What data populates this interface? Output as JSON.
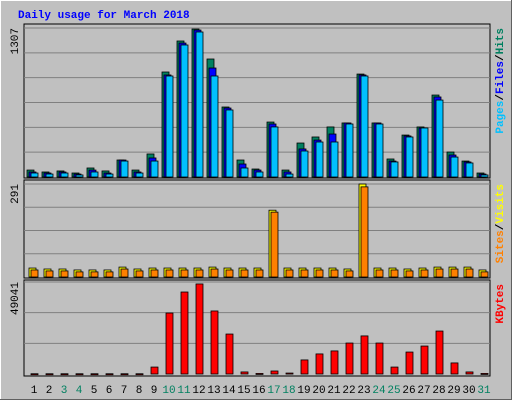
{
  "chart_data": [
    {
      "type": "bar",
      "title": "Daily usage for March 2018",
      "ylim": [
        0,
        1307
      ],
      "yticks": [
        1307
      ],
      "grid_divisions": 6,
      "legend_separator": "/",
      "series": [
        {
          "name": "Hits",
          "color": "#008060",
          "values": [
            61,
            44,
            53,
            35,
            79,
            53,
            149,
            61,
            202,
            921,
            1193,
            1298,
            1035,
            614,
            149,
            70,
            482,
            61,
            298,
            351,
            439,
            474,
            903,
            474,
            158,
            368,
            439,
            719,
            219,
            140,
            35
          ]
        },
        {
          "name": "Files",
          "color": "#0000ff",
          "values": [
            44,
            35,
            44,
            26,
            61,
            35,
            149,
            44,
            167,
            895,
            1175,
            1289,
            956,
            605,
            114,
            61,
            465,
            44,
            246,
            324,
            377,
            474,
            895,
            474,
            140,
            360,
            430,
            702,
            193,
            132,
            26
          ]
        },
        {
          "name": "Pages",
          "color": "#00c0ff",
          "values": [
            35,
            26,
            35,
            18,
            44,
            26,
            140,
            35,
            140,
            886,
            1158,
            1272,
            886,
            588,
            79,
            44,
            439,
            26,
            228,
            307,
            307,
            465,
            886,
            465,
            132,
            351,
            430,
            675,
            175,
            123,
            18
          ]
        }
      ]
    },
    {
      "type": "bar",
      "ylim": [
        0,
        291
      ],
      "yticks": [
        291
      ],
      "grid_divisions": 4,
      "legend_separator": "/",
      "series": [
        {
          "name": "Visits",
          "color": "#ffff00",
          "values": [
            28,
            25,
            25,
            22,
            22,
            22,
            31,
            25,
            28,
            28,
            28,
            28,
            31,
            28,
            28,
            28,
            209,
            28,
            28,
            28,
            28,
            25,
            291,
            28,
            28,
            25,
            28,
            31,
            31,
            31,
            22
          ]
        },
        {
          "name": "Sites",
          "color": "#ff8000",
          "values": [
            22,
            19,
            19,
            16,
            16,
            16,
            25,
            19,
            22,
            22,
            22,
            22,
            25,
            22,
            22,
            22,
            203,
            22,
            22,
            22,
            22,
            19,
            282,
            22,
            22,
            19,
            22,
            25,
            25,
            25,
            16
          ]
        }
      ]
    },
    {
      "type": "bar",
      "ylim": [
        0,
        49041
      ],
      "yticks": [
        49041
      ],
      "grid_divisions": 3,
      "categories": [
        "1",
        "2",
        "3",
        "4",
        "5",
        "6",
        "7",
        "8",
        "9",
        "10",
        "11",
        "12",
        "13",
        "14",
        "15",
        "16",
        "17",
        "18",
        "19",
        "20",
        "21",
        "22",
        "23",
        "24",
        "25",
        "26",
        "27",
        "28",
        "29",
        "30",
        "31"
      ],
      "category_colors": [
        "#000000",
        "#000000",
        "#008060",
        "#008060",
        "#000000",
        "#000000",
        "#000000",
        "#000000",
        "#000000",
        "#008060",
        "#008060",
        "#000000",
        "#000000",
        "#000000",
        "#000000",
        "#000000",
        "#008060",
        "#008060",
        "#000000",
        "#000000",
        "#000000",
        "#000000",
        "#000000",
        "#008060",
        "#008060",
        "#000000",
        "#000000",
        "#000000",
        "#000000",
        "#000000",
        "#008060"
      ],
      "series": [
        {
          "name": "KBytes",
          "color": "#ff0000",
          "values": [
            150,
            150,
            150,
            150,
            150,
            150,
            150,
            150,
            3700,
            32500,
            43700,
            48000,
            33600,
            21300,
            1100,
            300,
            1600,
            500,
            7500,
            10700,
            12300,
            16500,
            20300,
            16500,
            3700,
            11700,
            14900,
            22900,
            5900,
            1100,
            300
          ]
        }
      ]
    }
  ]
}
